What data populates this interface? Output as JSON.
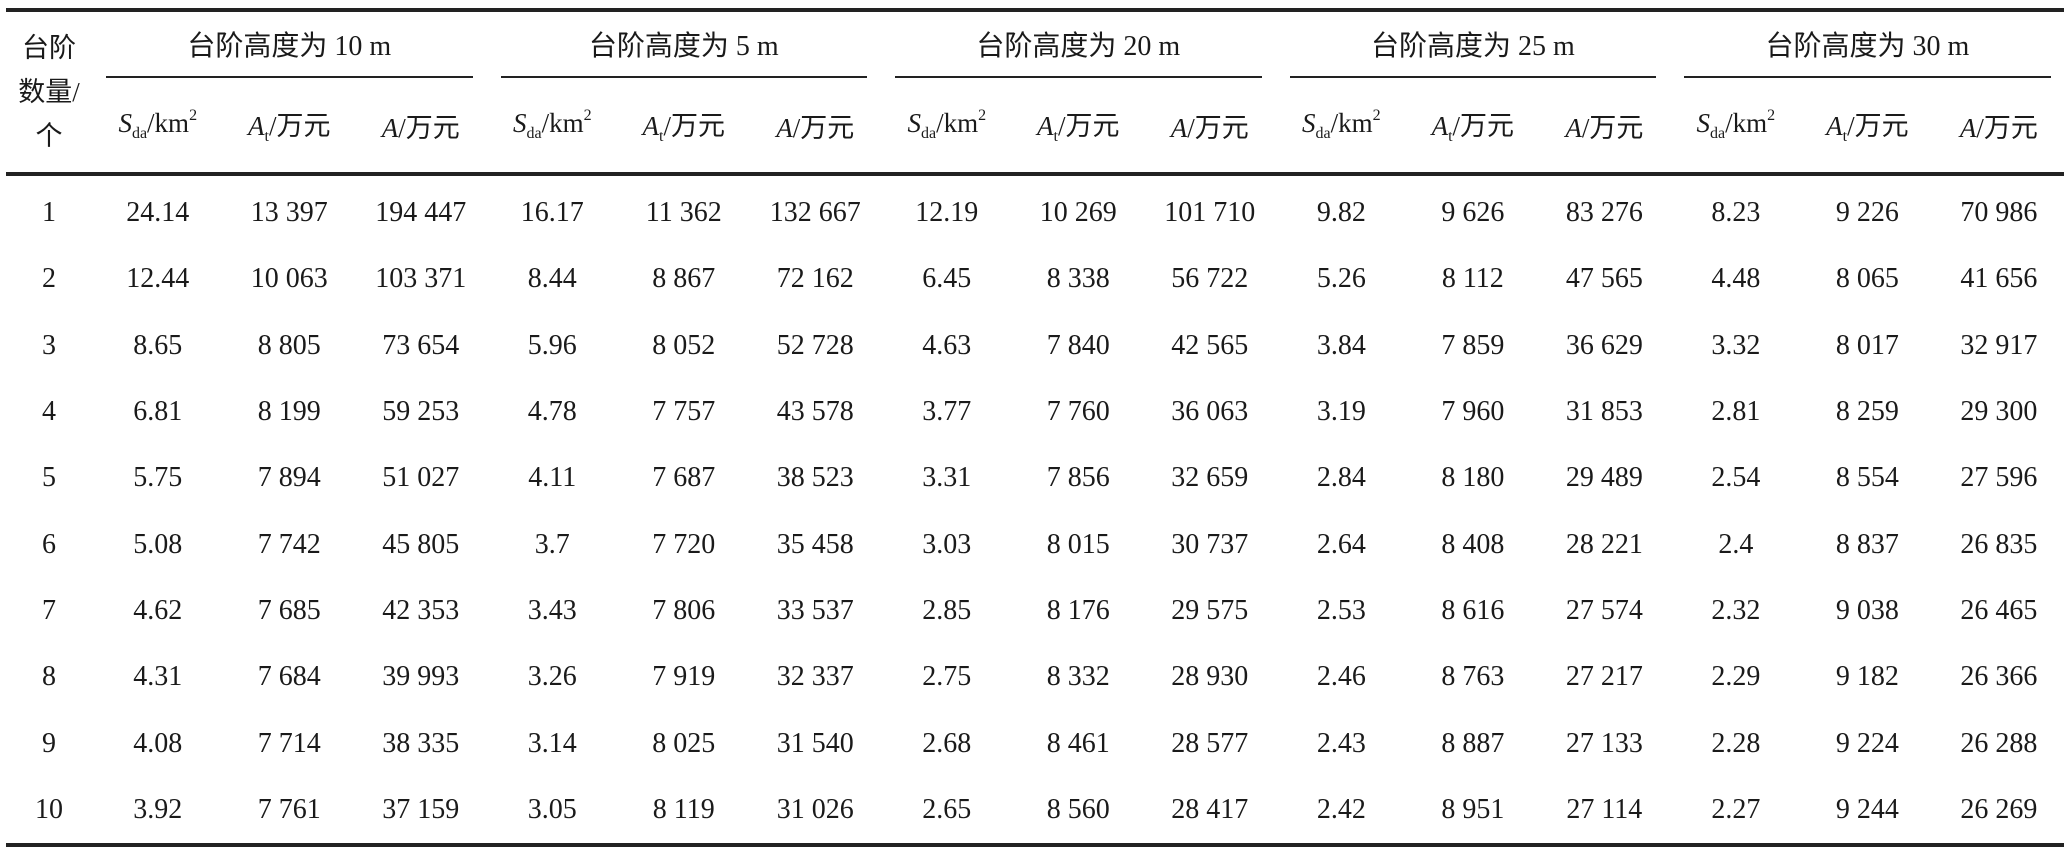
{
  "header": {
    "row_label": [
      "台阶",
      "数量/",
      "个"
    ],
    "groups": [
      "台阶高度为 10 m",
      "台阶高度为 5 m",
      "台阶高度为 20 m",
      "台阶高度为 25 m",
      "台阶高度为 30 m"
    ],
    "sub_columns": [
      {
        "sym": "S",
        "sub": "da",
        "unit": "/km",
        "sup": "2"
      },
      {
        "sym": "A",
        "sub": "t",
        "unit": "/万元",
        "sup": ""
      },
      {
        "sym": "A",
        "sub": "",
        "unit": "/万元",
        "sup": ""
      }
    ]
  },
  "rows": [
    [
      "1",
      "24.14",
      "13 397",
      "194 447",
      "16.17",
      "11 362",
      "132 667",
      "12.19",
      "10 269",
      "101 710",
      "9.82",
      "9 626",
      "83 276",
      "8.23",
      "9 226",
      "70 986"
    ],
    [
      "2",
      "12.44",
      "10 063",
      "103 371",
      "8.44",
      "8 867",
      "72 162",
      "6.45",
      "8 338",
      "56 722",
      "5.26",
      "8 112",
      "47 565",
      "4.48",
      "8 065",
      "41 656"
    ],
    [
      "3",
      "8.65",
      "8 805",
      "73 654",
      "5.96",
      "8 052",
      "52 728",
      "4.63",
      "7 840",
      "42 565",
      "3.84",
      "7 859",
      "36 629",
      "3.32",
      "8 017",
      "32 917"
    ],
    [
      "4",
      "6.81",
      "8 199",
      "59 253",
      "4.78",
      "7 757",
      "43 578",
      "3.77",
      "7 760",
      "36 063",
      "3.19",
      "7 960",
      "31 853",
      "2.81",
      "8 259",
      "29 300"
    ],
    [
      "5",
      "5.75",
      "7 894",
      "51 027",
      "4.11",
      "7 687",
      "38 523",
      "3.31",
      "7 856",
      "32 659",
      "2.84",
      "8 180",
      "29 489",
      "2.54",
      "8 554",
      "27 596"
    ],
    [
      "6",
      "5.08",
      "7 742",
      "45 805",
      "3.7",
      "7 720",
      "35 458",
      "3.03",
      "8 015",
      "30 737",
      "2.64",
      "8 408",
      "28 221",
      "2.4",
      "8 837",
      "26 835"
    ],
    [
      "7",
      "4.62",
      "7 685",
      "42 353",
      "3.43",
      "7 806",
      "33 537",
      "2.85",
      "8 176",
      "29 575",
      "2.53",
      "8 616",
      "27 574",
      "2.32",
      "9 038",
      "26 465"
    ],
    [
      "8",
      "4.31",
      "7 684",
      "39 993",
      "3.26",
      "7 919",
      "32 337",
      "2.75",
      "8 332",
      "28 930",
      "2.46",
      "8 763",
      "27 217",
      "2.29",
      "9 182",
      "26 366"
    ],
    [
      "9",
      "4.08",
      "7 714",
      "38 335",
      "3.14",
      "8 025",
      "31 540",
      "2.68",
      "8 461",
      "28 577",
      "2.43",
      "8 887",
      "27 133",
      "2.28",
      "9 224",
      "26 288"
    ],
    [
      "10",
      "3.92",
      "7 761",
      "37 159",
      "3.05",
      "8 119",
      "31 026",
      "2.65",
      "8 560",
      "28 417",
      "2.42",
      "8 951",
      "27 114",
      "2.27",
      "9 244",
      "26 269"
    ]
  ]
}
